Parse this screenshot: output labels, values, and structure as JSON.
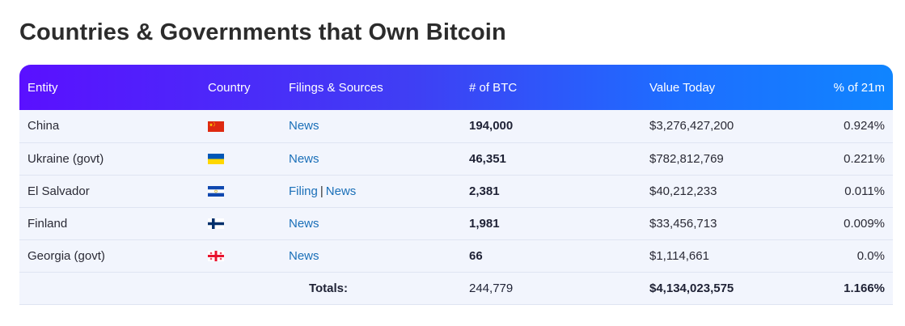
{
  "page": {
    "title": "Countries & Governments that Own Bitcoin"
  },
  "table": {
    "headers": {
      "entity": "Entity",
      "country": "Country",
      "filings": "Filings & Sources",
      "btc": "# of BTC",
      "value": "Value Today",
      "pct": "% of 21m"
    },
    "rows": [
      {
        "entity": "China",
        "flag": "china-flag-icon",
        "links": [
          "News"
        ],
        "btc": "194,000",
        "value": "$3,276,427,200",
        "pct": "0.924%"
      },
      {
        "entity": "Ukraine (govt)",
        "flag": "ukraine-flag-icon",
        "links": [
          "News"
        ],
        "btc": "46,351",
        "value": "$782,812,769",
        "pct": "0.221%"
      },
      {
        "entity": "El Salvador",
        "flag": "el-salvador-flag-icon",
        "links": [
          "Filing",
          "News"
        ],
        "separator": "|",
        "btc": "2,381",
        "value": "$40,212,233",
        "pct": "0.011%"
      },
      {
        "entity": "Finland",
        "flag": "finland-flag-icon",
        "links": [
          "News"
        ],
        "btc": "1,981",
        "value": "$33,456,713",
        "pct": "0.009%"
      },
      {
        "entity": "Georgia (govt)",
        "flag": "georgia-flag-icon",
        "links": [
          "News"
        ],
        "btc": "66",
        "value": "$1,114,661",
        "pct": "0.0%"
      }
    ],
    "totals": {
      "label": "Totals:",
      "btc": "244,779",
      "value": "$4,134,023,575",
      "pct": "1.166%"
    }
  },
  "colors": {
    "header_gradient_start": "#5a10ff",
    "header_gradient_end": "#1085ff",
    "link": "#1a6fb8",
    "row_bg": "#f2f5fd"
  }
}
